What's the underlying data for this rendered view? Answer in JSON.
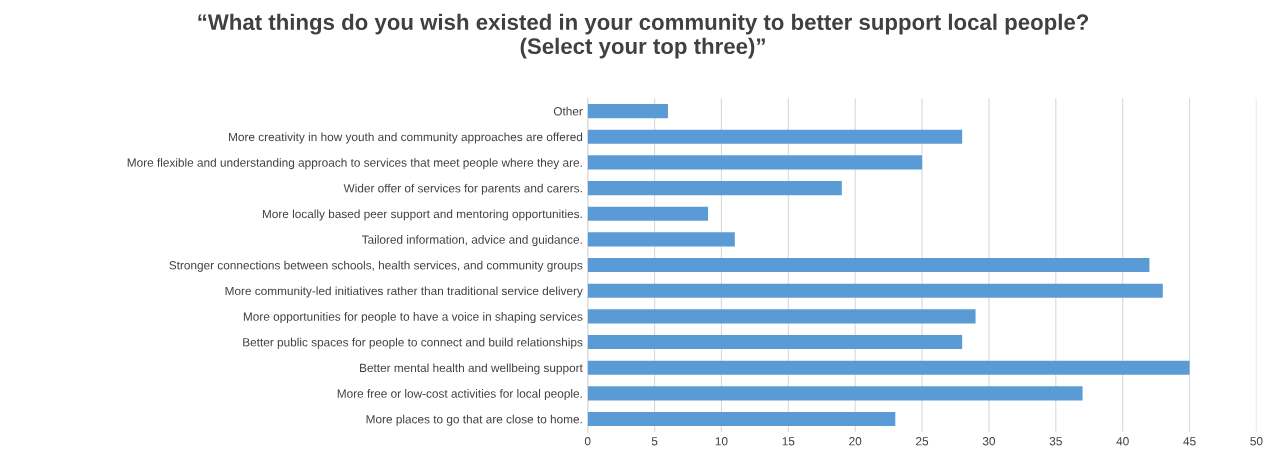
{
  "chart_data": {
    "type": "bar",
    "orientation": "horizontal",
    "title": "“What things do you wish existed in your community to better support local people?\n(Select your top three)”",
    "categories": [
      "Other",
      "More creativity in how youth and community approaches are offered",
      "More flexible and understanding approach to services that meet people where they are.",
      "Wider offer of services for parents and carers.",
      "More locally based peer support and mentoring opportunities.",
      "Tailored information, advice and guidance.",
      "Stronger connections between schools, health services, and community groups",
      "More community-led initiatives rather than traditional service delivery",
      "More opportunities for people to have a voice in shaping services",
      "Better public spaces for people to connect and build relationships",
      "Better mental health and wellbeing support",
      "More free or low-cost activities for local people.",
      "More places to go that are close to home."
    ],
    "values": [
      6,
      28,
      25,
      19,
      9,
      11,
      42,
      43,
      29,
      28,
      45,
      37,
      23
    ],
    "color": "#5b9bd5",
    "xlim": [
      0,
      50
    ],
    "xticks": [
      0,
      5,
      10,
      15,
      20,
      25,
      30,
      35,
      40,
      45,
      50
    ],
    "grid": "x",
    "legend": false
  }
}
